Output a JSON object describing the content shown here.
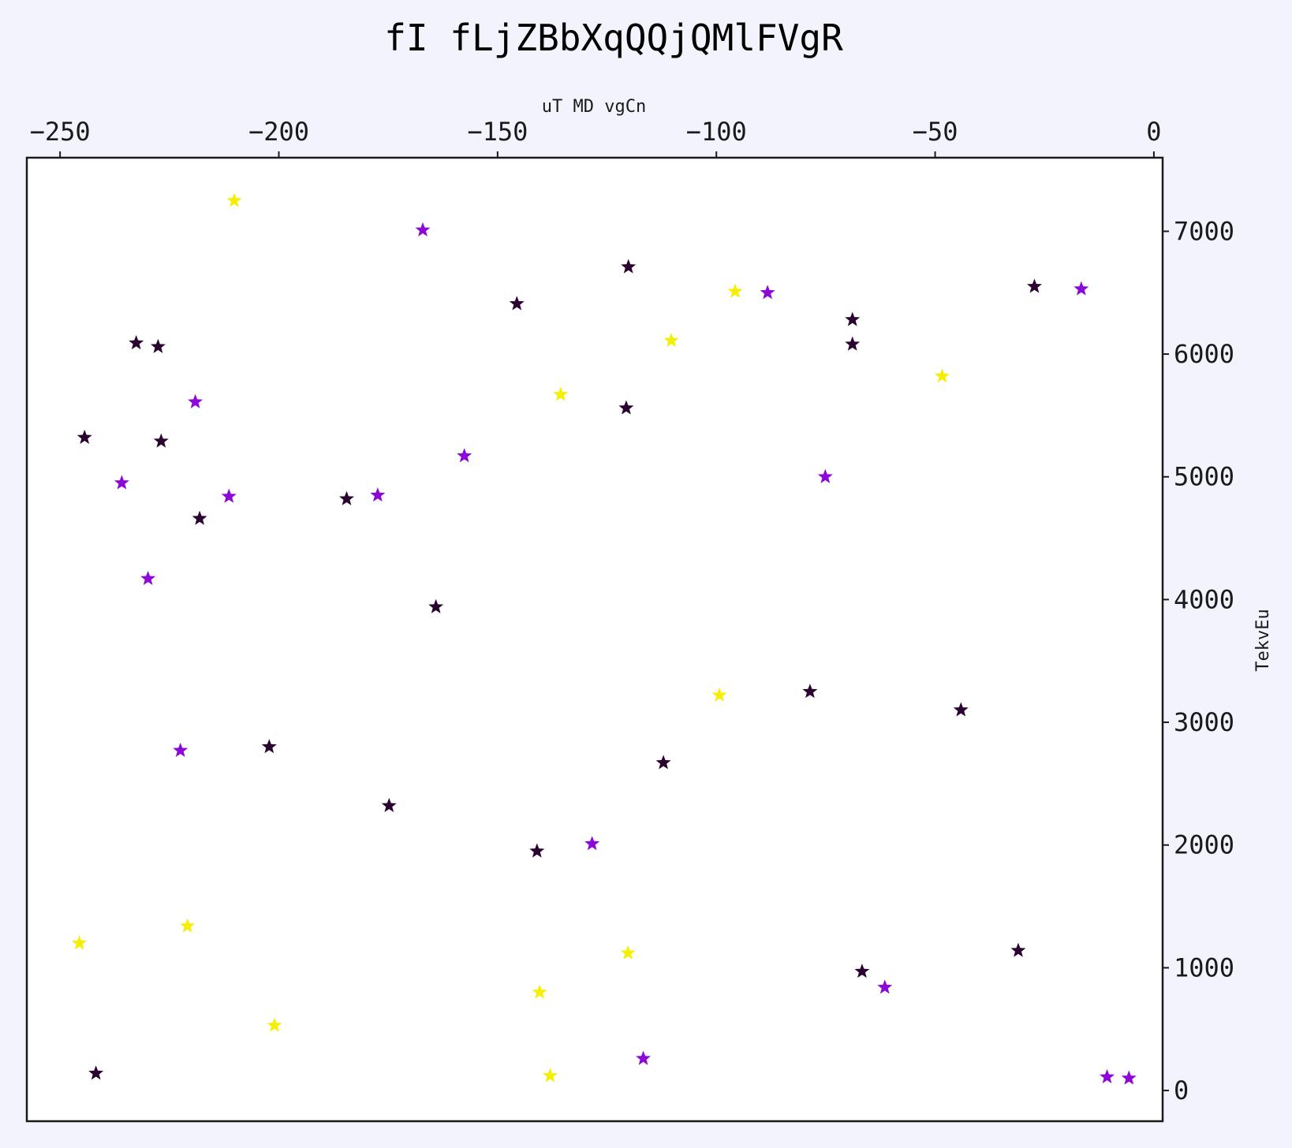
{
  "chart_data": {
    "type": "scatter",
    "title": "fI fLjZBbXqQQjQMlFVgR",
    "xlabel": "uT MD  vgCn",
    "ylabel": "TekvEu",
    "x_axis_position": "top",
    "y_axis_position": "right",
    "xlim": [
      -257.6,
      2.0
    ],
    "ylim": [
      -250,
      7600
    ],
    "xticks": [
      -250,
      -200,
      -150,
      -100,
      -50,
      0
    ],
    "xtick_labels": [
      "−250",
      "−200",
      "−150",
      "−100",
      "−50",
      "0"
    ],
    "yticks": [
      0,
      1000,
      2000,
      3000,
      4000,
      5000,
      6000,
      7000
    ],
    "ytick_labels": [
      "0",
      "1000",
      "2000",
      "3000",
      "4000",
      "5000",
      "6000",
      "7000"
    ],
    "grid": false,
    "marker": "star",
    "colors": {
      "dark": "#2b0330",
      "purple": "#8c07d8",
      "yellow": "#f5ef05"
    },
    "points": [
      {
        "x": -210.2,
        "y": 7250,
        "c": "yellow"
      },
      {
        "x": -167.1,
        "y": 7010,
        "c": "purple"
      },
      {
        "x": -120.1,
        "y": 6710,
        "c": "dark"
      },
      {
        "x": -145.6,
        "y": 6410,
        "c": "dark"
      },
      {
        "x": -95.7,
        "y": 6510,
        "c": "yellow"
      },
      {
        "x": -88.3,
        "y": 6500,
        "c": "purple"
      },
      {
        "x": -27.3,
        "y": 6550,
        "c": "dark"
      },
      {
        "x": -16.6,
        "y": 6530,
        "c": "purple"
      },
      {
        "x": -68.9,
        "y": 6280,
        "c": "dark"
      },
      {
        "x": -68.9,
        "y": 6080,
        "c": "dark"
      },
      {
        "x": -110.3,
        "y": 6110,
        "c": "yellow"
      },
      {
        "x": -232.6,
        "y": 6090,
        "c": "dark"
      },
      {
        "x": -227.6,
        "y": 6060,
        "c": "dark"
      },
      {
        "x": -48.4,
        "y": 5820,
        "c": "yellow"
      },
      {
        "x": -135.6,
        "y": 5670,
        "c": "yellow"
      },
      {
        "x": -120.6,
        "y": 5560,
        "c": "dark"
      },
      {
        "x": -219.1,
        "y": 5610,
        "c": "purple"
      },
      {
        "x": -244.4,
        "y": 5320,
        "c": "dark"
      },
      {
        "x": -226.9,
        "y": 5290,
        "c": "dark"
      },
      {
        "x": -157.6,
        "y": 5170,
        "c": "purple"
      },
      {
        "x": -75.1,
        "y": 5000,
        "c": "purple"
      },
      {
        "x": -235.9,
        "y": 4950,
        "c": "purple"
      },
      {
        "x": -211.4,
        "y": 4840,
        "c": "purple"
      },
      {
        "x": -184.5,
        "y": 4820,
        "c": "dark"
      },
      {
        "x": -177.4,
        "y": 4850,
        "c": "purple"
      },
      {
        "x": -218.1,
        "y": 4660,
        "c": "dark"
      },
      {
        "x": -229.9,
        "y": 4170,
        "c": "purple"
      },
      {
        "x": -164.1,
        "y": 3940,
        "c": "dark"
      },
      {
        "x": -99.3,
        "y": 3220,
        "c": "yellow"
      },
      {
        "x": -78.6,
        "y": 3250,
        "c": "dark"
      },
      {
        "x": -44.1,
        "y": 3100,
        "c": "dark"
      },
      {
        "x": -222.5,
        "y": 2770,
        "c": "purple"
      },
      {
        "x": -202.2,
        "y": 2800,
        "c": "dark"
      },
      {
        "x": -112.1,
        "y": 2670,
        "c": "dark"
      },
      {
        "x": -174.8,
        "y": 2320,
        "c": "dark"
      },
      {
        "x": -141.0,
        "y": 1950,
        "c": "dark"
      },
      {
        "x": -128.4,
        "y": 2010,
        "c": "purple"
      },
      {
        "x": -245.6,
        "y": 1200,
        "c": "yellow"
      },
      {
        "x": -220.9,
        "y": 1340,
        "c": "yellow"
      },
      {
        "x": -120.2,
        "y": 1120,
        "c": "yellow"
      },
      {
        "x": -31.0,
        "y": 1140,
        "c": "dark"
      },
      {
        "x": -66.7,
        "y": 970,
        "c": "dark"
      },
      {
        "x": -61.5,
        "y": 840,
        "c": "purple"
      },
      {
        "x": -140.4,
        "y": 800,
        "c": "yellow"
      },
      {
        "x": -201.0,
        "y": 530,
        "c": "yellow"
      },
      {
        "x": -116.7,
        "y": 260,
        "c": "purple"
      },
      {
        "x": -241.8,
        "y": 140,
        "c": "dark"
      },
      {
        "x": -138.0,
        "y": 120,
        "c": "yellow"
      },
      {
        "x": -10.7,
        "y": 110,
        "c": "purple"
      },
      {
        "x": -5.7,
        "y": 100,
        "c": "purple"
      }
    ]
  }
}
